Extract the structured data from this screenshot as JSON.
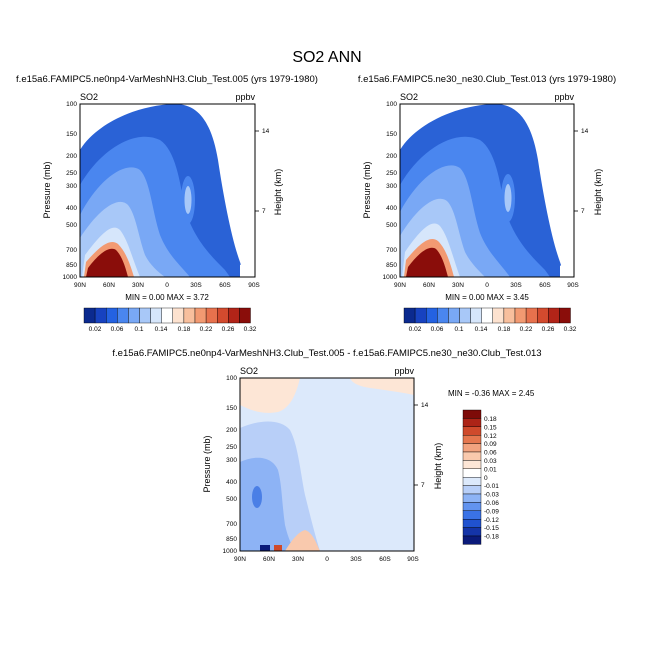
{
  "title": "SO2 ANN",
  "colors": {
    "main_scale": [
      "#0b2a8f",
      "#1742c0",
      "#2462e2",
      "#4a86ef",
      "#79a8f5",
      "#a8c8f8",
      "#d6e6fb",
      "#ffffff",
      "#fde2cf",
      "#f8bf9d",
      "#f29a72",
      "#e7714d",
      "#d34a2e",
      "#b22418",
      "#8a0d0a"
    ],
    "diff_scale": [
      "#0a1a7a",
      "#1434a8",
      "#2052d0",
      "#3a72e6",
      "#6293ef",
      "#8db3f5",
      "#b8cff8",
      "#dce9fb",
      "#ffffff",
      "#fde6d6",
      "#f9c9ad",
      "#f2a37f",
      "#e5774f",
      "#cf4a2c",
      "#ad2417",
      "#7e0b08"
    ]
  },
  "panels": [
    {
      "title": "f.e15a6.FAMIPC5.ne0np4-VarMeshNH3.Club_Test.005 (yrs 1979-1980)",
      "left_label": "SO2",
      "right_label": "ppbv",
      "ylabel": "Pressure (mb)",
      "y2label": "Height (km)",
      "minmax": "MIN =   0.00  MAX =   3.72"
    },
    {
      "title": "f.e15a6.FAMIPC5.ne30_ne30.Club_Test.013 (yrs 1979-1980)",
      "left_label": "SO2",
      "right_label": "ppbv",
      "ylabel": "Pressure (mb)",
      "y2label": "Height (km)",
      "minmax": "MIN =   0.00  MAX =   3.45"
    }
  ],
  "diff_panel": {
    "title": "f.e15a6.FAMIPC5.ne0np4-VarMeshNH3.Club_Test.005 - f.e15a6.FAMIPC5.ne30_ne30.Club_Test.013",
    "left_label": "SO2",
    "right_label": "ppbv",
    "ylabel": "Pressure (mb)",
    "y2label": "Height (km)",
    "minmax": "MIN =  -0.36  MAX =   2.45"
  },
  "chart_data": [
    {
      "type": "heatmap",
      "x_ticks": [
        "90N",
        "60N",
        "30N",
        "0",
        "30S",
        "60S",
        "90S"
      ],
      "y_ticks": [
        "100",
        "150",
        "200",
        "250",
        "300",
        "400",
        "500",
        "700",
        "850",
        "1000"
      ],
      "y_scale": "log-pressure",
      "ylim": [
        1000,
        100
      ],
      "y2_ticks": [
        "14",
        "7"
      ],
      "colorbar_labels": [
        "0.02",
        "0.06",
        "0.1",
        "0.14",
        "0.18",
        "0.22",
        "0.26",
        "0.32"
      ],
      "min": 0.0,
      "max": 3.72
    },
    {
      "type": "heatmap",
      "x_ticks": [
        "90N",
        "60N",
        "30N",
        "0",
        "30S",
        "60S",
        "90S"
      ],
      "y_ticks": [
        "100",
        "150",
        "200",
        "250",
        "300",
        "400",
        "500",
        "700",
        "850",
        "1000"
      ],
      "y_scale": "log-pressure",
      "ylim": [
        1000,
        100
      ],
      "y2_ticks": [
        "14",
        "7"
      ],
      "colorbar_labels": [
        "0.02",
        "0.06",
        "0.1",
        "0.14",
        "0.18",
        "0.22",
        "0.26",
        "0.32"
      ],
      "min": 0.0,
      "max": 3.45
    },
    {
      "type": "heatmap",
      "x_ticks": [
        "90N",
        "60N",
        "30N",
        "0",
        "30S",
        "60S",
        "90S"
      ],
      "y_ticks": [
        "100",
        "150",
        "200",
        "250",
        "300",
        "400",
        "500",
        "700",
        "850",
        "1000"
      ],
      "y_scale": "log-pressure",
      "ylim": [
        1000,
        100
      ],
      "y2_ticks": [
        "14",
        "7"
      ],
      "colorbar_labels": [
        "0.18",
        "0.15",
        "0.12",
        "0.09",
        "0.06",
        "0.03",
        "0.01",
        "0",
        "-0.01",
        "-0.03",
        "-0.06",
        "-0.09",
        "-0.12",
        "-0.15",
        "-0.18"
      ],
      "min": -0.36,
      "max": 2.45
    }
  ]
}
